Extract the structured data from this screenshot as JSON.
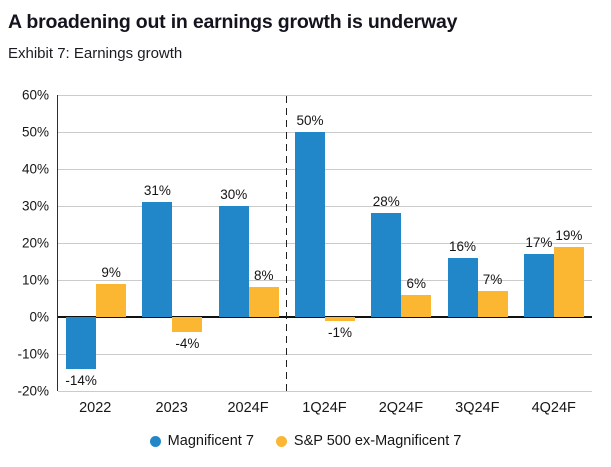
{
  "header": {
    "title": "A broadening out in earnings growth is underway",
    "subtitle": "Exhibit 7: Earnings growth"
  },
  "chart_data": {
    "type": "bar",
    "title": "A broadening out in earnings growth is underway",
    "subtitle": "Exhibit 7: Earnings growth",
    "categories": [
      "2022",
      "2023",
      "2024F",
      "1Q24F",
      "2Q24F",
      "3Q24F",
      "4Q24F"
    ],
    "series": [
      {
        "name": "Magnificent 7",
        "color": "#2287C8",
        "values": [
          -14,
          31,
          30,
          50,
          28,
          16,
          17
        ]
      },
      {
        "name": "S&P 500 ex-Magnificent 7",
        "color": "#FCB732",
        "values": [
          9,
          -4,
          8,
          -1,
          6,
          7,
          19
        ]
      }
    ],
    "ylim": [
      -20,
      60
    ],
    "yticks": [
      {
        "value": 60,
        "label": "60%"
      },
      {
        "value": 50,
        "label": "50%"
      },
      {
        "value": 40,
        "label": "40%"
      },
      {
        "value": 30,
        "label": "30%"
      },
      {
        "value": 20,
        "label": "20%"
      },
      {
        "value": 10,
        "label": "10%"
      },
      {
        "value": 0,
        "label": "0%"
      },
      {
        "value": -10,
        "label": "-10%"
      },
      {
        "value": -20,
        "label": "-20%"
      }
    ],
    "data_label_suffix": "%",
    "divider_before_index": 3,
    "grid": "horizontal",
    "legend_position": "bottom",
    "colors": {
      "grid": "#CBCBCB",
      "axis": "#2E2E2E",
      "zero_line": "#111111",
      "divider": "#1D1D1D",
      "text": "#161616"
    }
  }
}
